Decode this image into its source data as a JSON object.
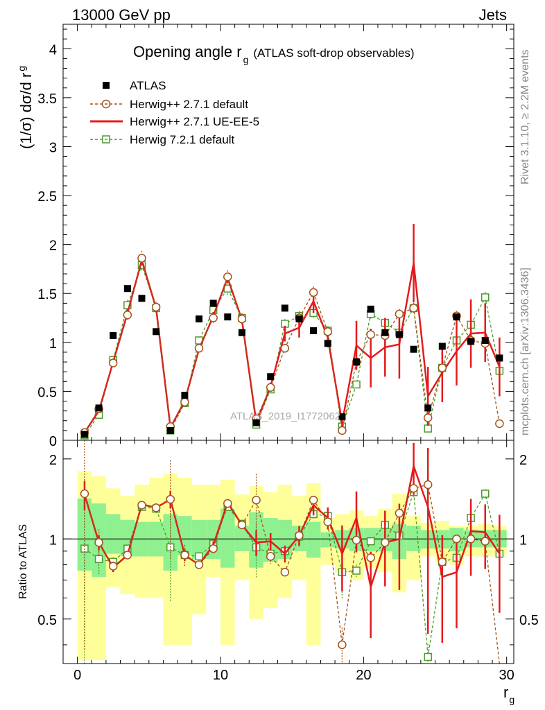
{
  "header": {
    "left": "13000 GeV pp",
    "right": "Jets"
  },
  "side_labels": {
    "rivet": "Rivet 3.1.10, ≥ 2.2M events",
    "mcplots": "mcplots.cern.ch [arXiv:1306.3436]"
  },
  "chart_data": {
    "type": "line",
    "title": "Opening angle r",
    "title_sub": "g",
    "title_note": "(ATLAS soft-drop observables)",
    "watermark": "ATLAS_2019_I1772062",
    "xlabel": "r",
    "xlabel_sub": "g",
    "ylabel": "(1/σ) dσ/d r",
    "ylabel_sub": "g",
    "ratio_ylabel": "Ratio to ATLAS",
    "xlim": [
      -1,
      30.5
    ],
    "ylim": [
      0,
      4.25
    ],
    "ratio_ylim": [
      0.34,
      2.35
    ],
    "x_ticks": [
      0,
      10,
      20,
      30
    ],
    "y_ticks": [
      0,
      0.5,
      1,
      1.5,
      2,
      2.5,
      3,
      3.5,
      4
    ],
    "y_tick_labels": [
      "0",
      "0.5",
      "1",
      "1.5",
      "2",
      "2.5",
      "3",
      "3.5",
      "4"
    ],
    "ratio_ticks": [
      0.5,
      1,
      2
    ],
    "ratio_tick_labels": [
      "0.5",
      "1",
      "2"
    ],
    "ratio_log": true,
    "legend_position": "top-left",
    "x": [
      0.5,
      1.5,
      2.5,
      3.5,
      4.5,
      5.5,
      6.5,
      7.5,
      8.5,
      9.5,
      10.5,
      11.5,
      12.5,
      13.5,
      14.5,
      15.5,
      16.5,
      17.5,
      18.5,
      19.5,
      20.5,
      21.5,
      22.5,
      23.5,
      24.5,
      25.5,
      26.5,
      27.5,
      28.5,
      29.5
    ],
    "series": [
      {
        "name": "ATLAS",
        "style": "data",
        "color": "#000000",
        "values": [
          0.06,
          0.33,
          1.07,
          1.55,
          1.45,
          1.11,
          0.1,
          0.46,
          1.24,
          1.4,
          1.26,
          1.1,
          0.18,
          0.65,
          1.35,
          1.24,
          1.12,
          0.99,
          0.24,
          0.8,
          1.34,
          1.1,
          1.08,
          0.93,
          0.33,
          0.96,
          1.26,
          1.01,
          1.02,
          0.84
        ],
        "band_inner": [
          0.76,
          0.72,
          0.88,
          0.86,
          0.86,
          0.86,
          0.76,
          0.87,
          0.84,
          0.84,
          0.78,
          0.9,
          0.78,
          0.82,
          0.84,
          0.9,
          0.85,
          0.93,
          0.92,
          0.9,
          0.9,
          0.9,
          0.84,
          0.9,
          0.92,
          0.92,
          0.9,
          0.93,
          0.93,
          0.93
        ],
        "band_inner_hi": [
          1.42,
          1.36,
          1.24,
          1.18,
          1.16,
          1.16,
          1.24,
          1.22,
          1.18,
          1.18,
          1.3,
          1.12,
          1.26,
          1.2,
          1.18,
          1.12,
          1.16,
          1.06,
          1.08,
          1.1,
          1.1,
          1.1,
          1.14,
          1.12,
          1.08,
          1.08,
          1.1,
          1.08,
          1.08,
          1.08
        ],
        "band_outer": [
          0.35,
          0.35,
          0.66,
          0.62,
          0.6,
          0.6,
          0.4,
          0.4,
          0.52,
          0.72,
          0.4,
          0.7,
          0.5,
          0.55,
          0.6,
          0.7,
          0.4,
          0.8,
          0.75,
          0.7,
          0.78,
          0.75,
          0.63,
          0.7,
          0.86,
          0.82,
          0.8,
          0.86,
          0.86,
          0.86
        ],
        "band_outer_hi": [
          1.8,
          1.72,
          1.55,
          1.45,
          1.6,
          1.7,
          1.76,
          1.7,
          1.6,
          1.6,
          1.67,
          1.47,
          1.58,
          1.5,
          1.6,
          1.45,
          1.62,
          1.2,
          1.24,
          1.28,
          1.22,
          1.3,
          1.48,
          1.22,
          1.15,
          1.17,
          1.12,
          1.12,
          1.14,
          1.12
        ]
      },
      {
        "name": "Herwig++ 2.7.1 default",
        "style": "dashed-circle",
        "color": "#a0531a",
        "values": [
          0.08,
          0.32,
          0.79,
          1.28,
          1.86,
          1.36,
          0.14,
          0.39,
          0.94,
          1.25,
          1.67,
          1.24,
          0.22,
          0.54,
          0.94,
          1.25,
          1.51,
          1.11,
          0.1,
          0.8,
          1.08,
          1.07,
          1.29,
          1.35,
          0.23,
          0.74,
          1.27,
          1.02,
          0.99,
          0.17
        ],
        "ratio": [
          1.48,
          0.97,
          0.79,
          0.87,
          1.34,
          1.31,
          1.41,
          0.87,
          0.8,
          0.92,
          1.36,
          1.13,
          1.4,
          0.86,
          0.75,
          1.03,
          1.4,
          1.16,
          0.4,
          0.99,
          0.85,
          0.97,
          1.25,
          1.55,
          1.6,
          0.82,
          1.0,
          1.0,
          0.98,
          0.3
        ]
      },
      {
        "name": "Herwig++ 2.7.1 UE-EE-5",
        "style": "solid",
        "color": "#e41a1c",
        "values": [
          0.08,
          0.3,
          0.8,
          1.3,
          1.84,
          1.35,
          0.13,
          0.4,
          0.93,
          1.27,
          1.66,
          1.23,
          0.18,
          0.55,
          1.09,
          1.15,
          1.42,
          1.05,
          0.18,
          0.97,
          0.84,
          0.95,
          0.98,
          1.81,
          0.45,
          0.69,
          0.91,
          1.09,
          1.1,
          0.75
        ],
        "errors": [
          0.01,
          0.02,
          0.03,
          0.04,
          0.05,
          0.04,
          0.01,
          0.02,
          0.03,
          0.04,
          0.05,
          0.04,
          0.02,
          0.04,
          0.08,
          0.1,
          0.12,
          0.1,
          0.05,
          0.25,
          0.3,
          0.3,
          0.35,
          0.4,
          0.3,
          0.3,
          0.35,
          0.35,
          0.3,
          0.3
        ],
        "ratio": [
          1.47,
          0.97,
          0.78,
          0.87,
          1.35,
          1.31,
          1.41,
          0.87,
          0.8,
          0.95,
          1.37,
          1.13,
          0.97,
          0.98,
          0.88,
          1.03,
          1.34,
          1.2,
          0.88,
          1.2,
          0.66,
          0.97,
          1.0,
          1.88,
          1.32,
          0.72,
          0.75,
          1.07,
          1.06,
          0.88
        ]
      },
      {
        "name": "Herwig 7.2.1 default",
        "style": "dashed-square",
        "color": "#4a9b2b",
        "values": [
          0.05,
          0.26,
          0.82,
          1.38,
          1.79,
          1.35,
          0.1,
          0.38,
          1.02,
          1.33,
          1.55,
          1.25,
          0.16,
          0.52,
          1.19,
          1.27,
          1.3,
          1.12,
          0.14,
          0.57,
          1.29,
          1.2,
          1.1,
          1.35,
          0.12,
          0.74,
          1.02,
          1.18,
          1.46,
          0.71
        ],
        "ratio": [
          0.92,
          0.84,
          0.82,
          0.92,
          1.32,
          1.3,
          0.93,
          0.87,
          0.86,
          0.96,
          1.32,
          1.14,
          0.93,
          0.88,
          0.9,
          1.02,
          1.24,
          1.22,
          0.75,
          0.76,
          0.98,
          1.13,
          1.03,
          1.5,
          0.36,
          0.82,
          0.85,
          1.2,
          1.48,
          0.88
        ]
      }
    ]
  }
}
